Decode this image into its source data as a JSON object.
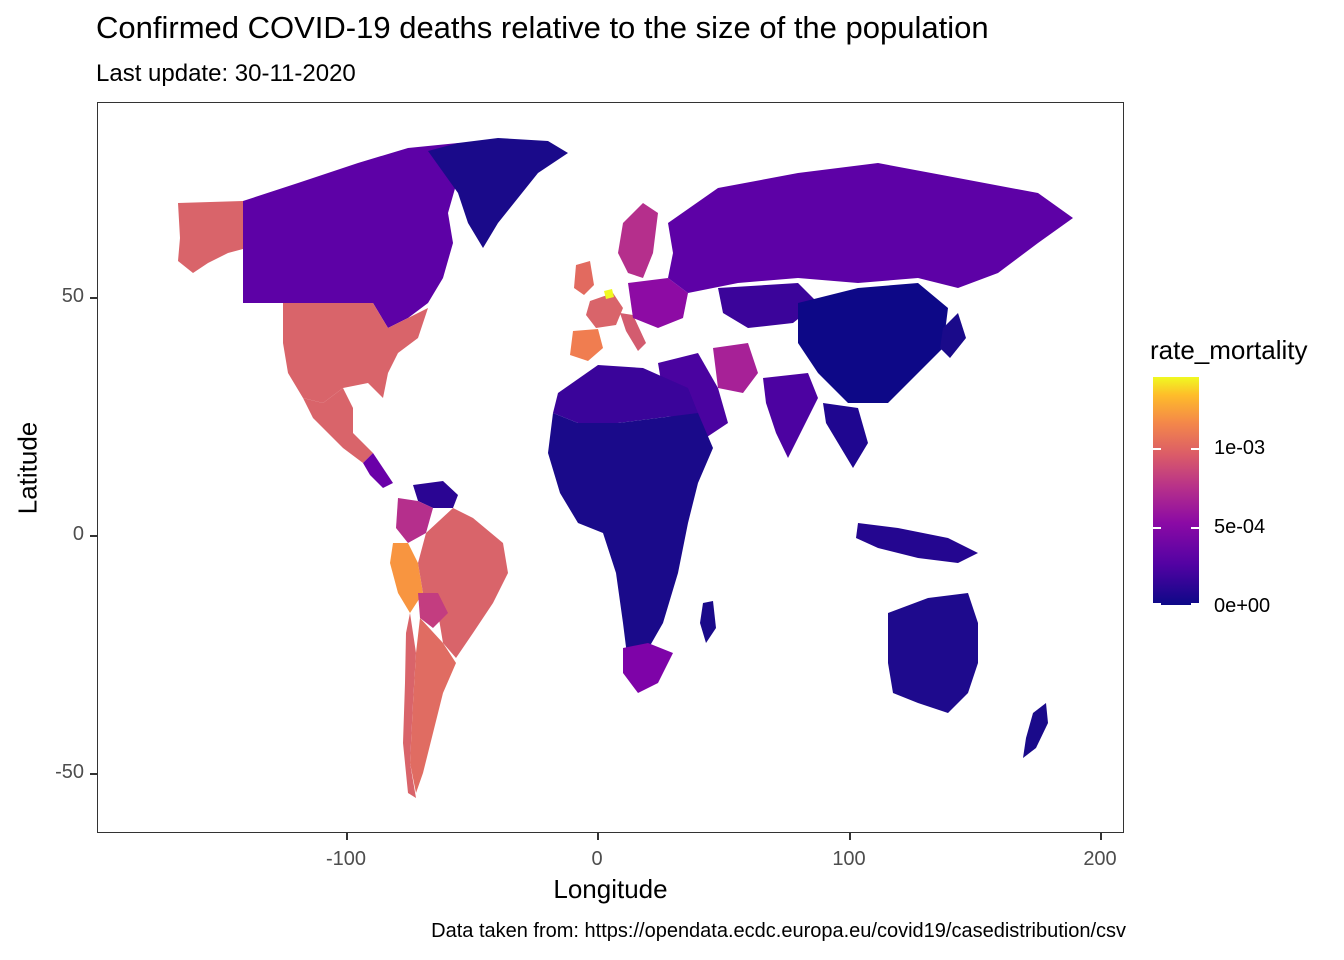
{
  "title": "Confirmed COVID-19 deaths relative to the size of the population",
  "subtitle": "Last update: 30-11-2020",
  "caption": "Data taken from: https://opendata.ecdc.europa.eu/covid19/casedistribution/csv",
  "axes": {
    "xlabel": "Longitude",
    "ylabel": "Latitude",
    "xticks": [
      "-100",
      "0",
      "100",
      "200"
    ],
    "yticks": [
      "50",
      "0",
      "-50"
    ]
  },
  "legend": {
    "title": "rate_mortality",
    "labels": [
      "1e-03",
      "5e-04",
      "0e+00"
    ]
  },
  "colors": {
    "low": "#0d0887",
    "mid": "#5d01a6",
    "magenta": "#9c179e",
    "pink": "#cc4778",
    "salmon": "#d9646a",
    "orange": "#f89540",
    "high": "#f0f921"
  },
  "chart_data": {
    "type": "map",
    "xlim": [
      -190,
      210
    ],
    "ylim": [
      -62,
      85
    ],
    "color_scale": {
      "variable": "rate_mortality",
      "min": 0,
      "max": 0.0015,
      "palette": "plasma"
    },
    "regions": [
      {
        "name": "United States",
        "rate_mortality": 0.00082
      },
      {
        "name": "Canada",
        "rate_mortality": 0.00033
      },
      {
        "name": "Mexico",
        "rate_mortality": 0.00083
      },
      {
        "name": "Brazil",
        "rate_mortality": 0.00082
      },
      {
        "name": "Peru",
        "rate_mortality": 0.0011
      },
      {
        "name": "Argentina",
        "rate_mortality": 0.00085
      },
      {
        "name": "Chile",
        "rate_mortality": 0.00082
      },
      {
        "name": "Colombia",
        "rate_mortality": 0.0007
      },
      {
        "name": "Bolivia",
        "rate_mortality": 0.00077
      },
      {
        "name": "Venezuela",
        "rate_mortality": 3e-05
      },
      {
        "name": "Spain",
        "rate_mortality": 0.00096
      },
      {
        "name": "Belgium",
        "rate_mortality": 0.00145
      },
      {
        "name": "United Kingdom",
        "rate_mortality": 0.00087
      },
      {
        "name": "France",
        "rate_mortality": 0.00077
      },
      {
        "name": "Italy",
        "rate_mortality": 0.0009
      },
      {
        "name": "Iran",
        "rate_mortality": 0.00056
      },
      {
        "name": "Russia",
        "rate_mortality": 0.00029
      },
      {
        "name": "South Africa",
        "rate_mortality": 0.00036
      },
      {
        "name": "India",
        "rate_mortality": 0.0001
      },
      {
        "name": "China",
        "rate_mortality": 3e-06
      },
      {
        "name": "Australia",
        "rate_mortality": 3.6e-05
      },
      {
        "name": "Greenland",
        "rate_mortality": 0
      }
    ]
  }
}
